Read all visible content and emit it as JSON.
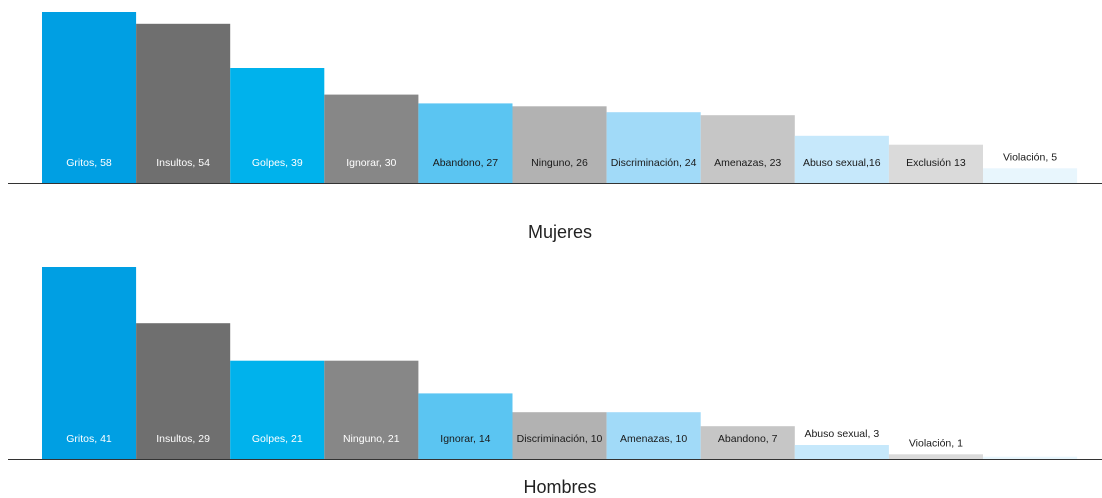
{
  "chart_data": [
    {
      "type": "bar",
      "title": "Mujeres",
      "categories": [
        "Gritos",
        "Insultos",
        "Golpes",
        "Ignorar",
        "Abandono",
        "Ninguno",
        "Discriminación",
        "Amenazas",
        "Abuso sexual",
        "Exclusión",
        "Violación"
      ],
      "values": [
        58,
        54,
        39,
        30,
        27,
        26,
        24,
        23,
        16,
        13,
        5
      ],
      "labels": [
        "Gritos, 58",
        "Insultos, 54",
        "Golpes, 39",
        "Ignorar, 30",
        "Abandono, 27",
        "Ninguno, 26",
        "Discriminación, 24",
        "Amenazas, 23",
        "Abuso sexual,16",
        "Exclusión 13",
        "Violación, 5"
      ],
      "colors": [
        "#009fe3",
        "#6f6f6f",
        "#00b2ec",
        "#878787",
        "#5bc5f2",
        "#b2b2b2",
        "#a1daf8",
        "#c6c6c6",
        "#c6e8fb",
        "#dadada",
        "#e8f6fd"
      ],
      "label_colors": [
        "#ffffff",
        "#ffffff",
        "#ffffff",
        "#ffffff",
        "#1a1a1a",
        "#1a1a1a",
        "#1a1a1a",
        "#1a1a1a",
        "#1a1a1a",
        "#1a1a1a",
        "#1a1a1a"
      ],
      "ylim": [
        0,
        58
      ],
      "xlabel": "",
      "ylabel": ""
    },
    {
      "type": "bar",
      "title": "Hombres",
      "categories": [
        "Gritos",
        "Insultos",
        "Golpes",
        "Ninguno",
        "Ignorar",
        "Discriminación",
        "Amenazas",
        "Abandono",
        "Abuso sexual",
        "Violación",
        ""
      ],
      "values": [
        41,
        29,
        21,
        21,
        14,
        10,
        10,
        7,
        3,
        1,
        0.5
      ],
      "labels": [
        "Gritos, 41",
        "Insultos, 29",
        "Golpes, 21",
        "Ninguno, 21",
        "Ignorar, 14",
        "Discriminación, 10",
        "Amenazas, 10",
        "Abandono, 7",
        "Abuso sexual, 3",
        "Violación, 1",
        ""
      ],
      "colors": [
        "#009fe3",
        "#6f6f6f",
        "#00b2ec",
        "#878787",
        "#5bc5f2",
        "#b2b2b2",
        "#a1daf8",
        "#c6c6c6",
        "#c6e8fb",
        "#dadada",
        "#e8f6fd"
      ],
      "label_colors": [
        "#ffffff",
        "#ffffff",
        "#ffffff",
        "#ffffff",
        "#1a1a1a",
        "#1a1a1a",
        "#1a1a1a",
        "#1a1a1a",
        "#1a1a1a",
        "#1a1a1a",
        "#1a1a1a"
      ],
      "ylim": [
        0,
        41
      ],
      "xlabel": "",
      "ylabel": ""
    }
  ]
}
